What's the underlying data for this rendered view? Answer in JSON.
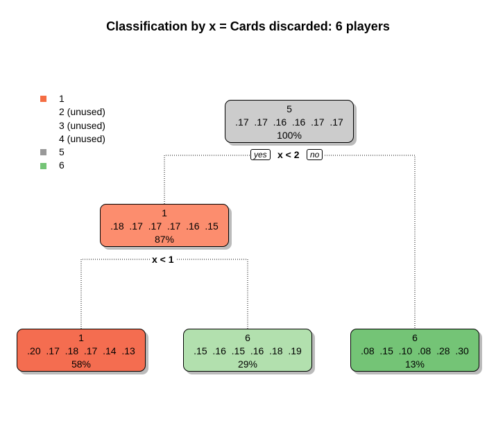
{
  "title": "Classification by x = Cards discarded: 6 players",
  "legend": [
    {
      "label": "1",
      "color": "#f46d43",
      "swatch": true
    },
    {
      "label": "2 (unused)",
      "color": "",
      "swatch": false
    },
    {
      "label": "3 (unused)",
      "color": "",
      "swatch": false
    },
    {
      "label": "4 (unused)",
      "color": "",
      "swatch": false
    },
    {
      "label": "5",
      "color": "#999999",
      "swatch": true
    },
    {
      "label": "6",
      "color": "#74c476",
      "swatch": true
    }
  ],
  "nodes": {
    "root": {
      "class": "5",
      "probs": ".17  .17  .16  .16  .17  .17",
      "pct": "100%",
      "fill": "#cccccc"
    },
    "left": {
      "class": "1",
      "probs": ".18  .17  .17  .17  .16  .15",
      "pct": "87%",
      "fill": "#fc8d6e"
    },
    "leaf1": {
      "class": "1",
      "probs": ".20  .17  .18  .17  .14  .13",
      "pct": "58%",
      "fill": "#f46d50"
    },
    "leaf2": {
      "class": "6",
      "probs": ".15  .16  .15  .16  .18  .19",
      "pct": "29%",
      "fill": "#b2e0ae"
    },
    "leaf3": {
      "class": "6",
      "probs": ".08  .15  .10  .08  .28  .30",
      "pct": "13%",
      "fill": "#74c476"
    }
  },
  "splits": {
    "root": "x < 2",
    "left": "x < 1",
    "yes": "yes",
    "no": "no"
  }
}
